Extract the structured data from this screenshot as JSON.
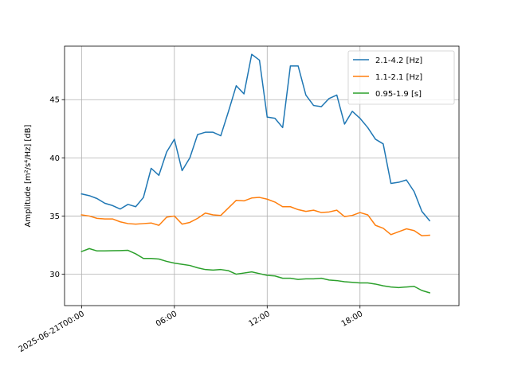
{
  "chart_data": {
    "type": "line",
    "title": "",
    "xlabel": "",
    "ylabel": "Amplitude [m²/s⁴/Hz] [dB]",
    "x_ticks": [
      {
        "value": "2025-06-21T00:00",
        "label": "2025-06-21T00:00"
      },
      {
        "value": "2025-06-21T06:00",
        "label": "06:00"
      },
      {
        "value": "2025-06-21T12:00",
        "label": "12:00"
      },
      {
        "value": "2025-06-21T18:00",
        "label": "18:00"
      }
    ],
    "y_ticks": [
      30,
      35,
      40,
      45
    ],
    "xlim": [
      "2025-06-20T22:54",
      "2025-06-22T00:24"
    ],
    "ylim": [
      27.3,
      49.6
    ],
    "grid": true,
    "legend_position": "top-right",
    "x": [
      "2025-06-21T00:00",
      "2025-06-21T00:30",
      "2025-06-21T01:00",
      "2025-06-21T01:30",
      "2025-06-21T02:00",
      "2025-06-21T02:30",
      "2025-06-21T03:00",
      "2025-06-21T03:30",
      "2025-06-21T04:00",
      "2025-06-21T04:30",
      "2025-06-21T05:00",
      "2025-06-21T05:30",
      "2025-06-21T06:00",
      "2025-06-21T06:30",
      "2025-06-21T07:00",
      "2025-06-21T07:30",
      "2025-06-21T08:00",
      "2025-06-21T08:30",
      "2025-06-21T09:00",
      "2025-06-21T09:30",
      "2025-06-21T10:00",
      "2025-06-21T10:30",
      "2025-06-21T11:00",
      "2025-06-21T11:30",
      "2025-06-21T12:00",
      "2025-06-21T12:30",
      "2025-06-21T13:00",
      "2025-06-21T13:30",
      "2025-06-21T14:00",
      "2025-06-21T14:30",
      "2025-06-21T15:00",
      "2025-06-21T15:30",
      "2025-06-21T16:00",
      "2025-06-21T16:30",
      "2025-06-21T17:00",
      "2025-06-21T17:30",
      "2025-06-21T18:00",
      "2025-06-21T18:30",
      "2025-06-21T19:00",
      "2025-06-21T19:30",
      "2025-06-21T20:00",
      "2025-06-21T20:30",
      "2025-06-21T21:00",
      "2025-06-21T21:30",
      "2025-06-21T22:00",
      "2025-06-21T22:30"
    ],
    "series": [
      {
        "name": "2.1-4.2 [Hz]",
        "color": "#1f77b4",
        "values": [
          36.9,
          36.75,
          36.5,
          36.1,
          35.9,
          35.6,
          36.0,
          35.8,
          36.6,
          39.1,
          38.5,
          40.5,
          41.6,
          38.9,
          40.0,
          42.0,
          42.2,
          42.2,
          41.9,
          44.0,
          46.2,
          45.5,
          48.9,
          48.4,
          43.5,
          43.4,
          42.6,
          47.9,
          47.9,
          45.4,
          44.5,
          44.4,
          45.1,
          45.4,
          42.9,
          44.0,
          43.4,
          42.6,
          41.6,
          41.2,
          37.8,
          37.9,
          38.1,
          37.1,
          35.4,
          34.6
        ]
      },
      {
        "name": "1.1-2.1 [Hz]",
        "color": "#ff7f0e",
        "values": [
          35.1,
          35.0,
          34.8,
          34.75,
          34.75,
          34.5,
          34.35,
          34.3,
          34.35,
          34.4,
          34.2,
          34.9,
          35.0,
          34.3,
          34.45,
          34.8,
          35.25,
          35.1,
          35.05,
          35.7,
          36.35,
          36.3,
          36.55,
          36.6,
          36.45,
          36.2,
          35.8,
          35.8,
          35.55,
          35.4,
          35.5,
          35.3,
          35.35,
          35.5,
          34.95,
          35.05,
          35.3,
          35.1,
          34.2,
          33.95,
          33.4,
          33.65,
          33.9,
          33.75,
          33.3,
          33.35
        ]
      },
      {
        "name": "0.95-1.9 [s]",
        "color": "#2ca02c",
        "values": [
          31.95,
          32.2,
          32.0,
          32.0,
          32.02,
          32.03,
          32.05,
          31.75,
          31.35,
          31.35,
          31.3,
          31.1,
          30.95,
          30.85,
          30.75,
          30.55,
          30.4,
          30.35,
          30.4,
          30.3,
          30.0,
          30.1,
          30.2,
          30.05,
          29.9,
          29.85,
          29.65,
          29.65,
          29.55,
          29.6,
          29.6,
          29.65,
          29.5,
          29.45,
          29.35,
          29.3,
          29.25,
          29.25,
          29.15,
          29.0,
          28.9,
          28.85,
          28.9,
          28.95,
          28.6,
          28.4
        ]
      }
    ]
  }
}
